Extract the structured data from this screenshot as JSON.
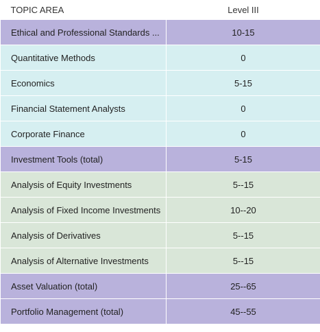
{
  "header": {
    "topic_label": "TOPIC AREA",
    "level_label": "Level III"
  },
  "colors": {
    "purple": "#b9b2dc",
    "cyan": "#d6eff1",
    "green": "#d9e6d8"
  },
  "rows": [
    {
      "topic": "Ethical and Professional Standards ...",
      "level": "10-15",
      "group": "purple"
    },
    {
      "topic": "Quantitative Methods",
      "level": "0",
      "group": "cyan"
    },
    {
      "topic": "Economics",
      "level": "5-15",
      "group": "cyan"
    },
    {
      "topic": "Financial Statement Analysts",
      "level": "0",
      "group": "cyan"
    },
    {
      "topic": "Corporate Finance",
      "level": "0",
      "group": "cyan"
    },
    {
      "topic": "Investment Tools (total)",
      "level": "5-15",
      "group": "purple"
    },
    {
      "topic": "Analysis of Equity Investments",
      "level": "5--15",
      "group": "green"
    },
    {
      "topic": "Analysis of Fixed Income Investments",
      "level": "10--20",
      "group": "green"
    },
    {
      "topic": "Analysis of Derivatives",
      "level": "5--15",
      "group": "green"
    },
    {
      "topic": "Analysis of Alternative Investments",
      "level": "5--15",
      "group": "green"
    },
    {
      "topic": "Asset Valuation (total)",
      "level": "25--65",
      "group": "purple"
    },
    {
      "topic": "Portfolio Management (total)",
      "level": "45--55",
      "group": "purple"
    }
  ]
}
